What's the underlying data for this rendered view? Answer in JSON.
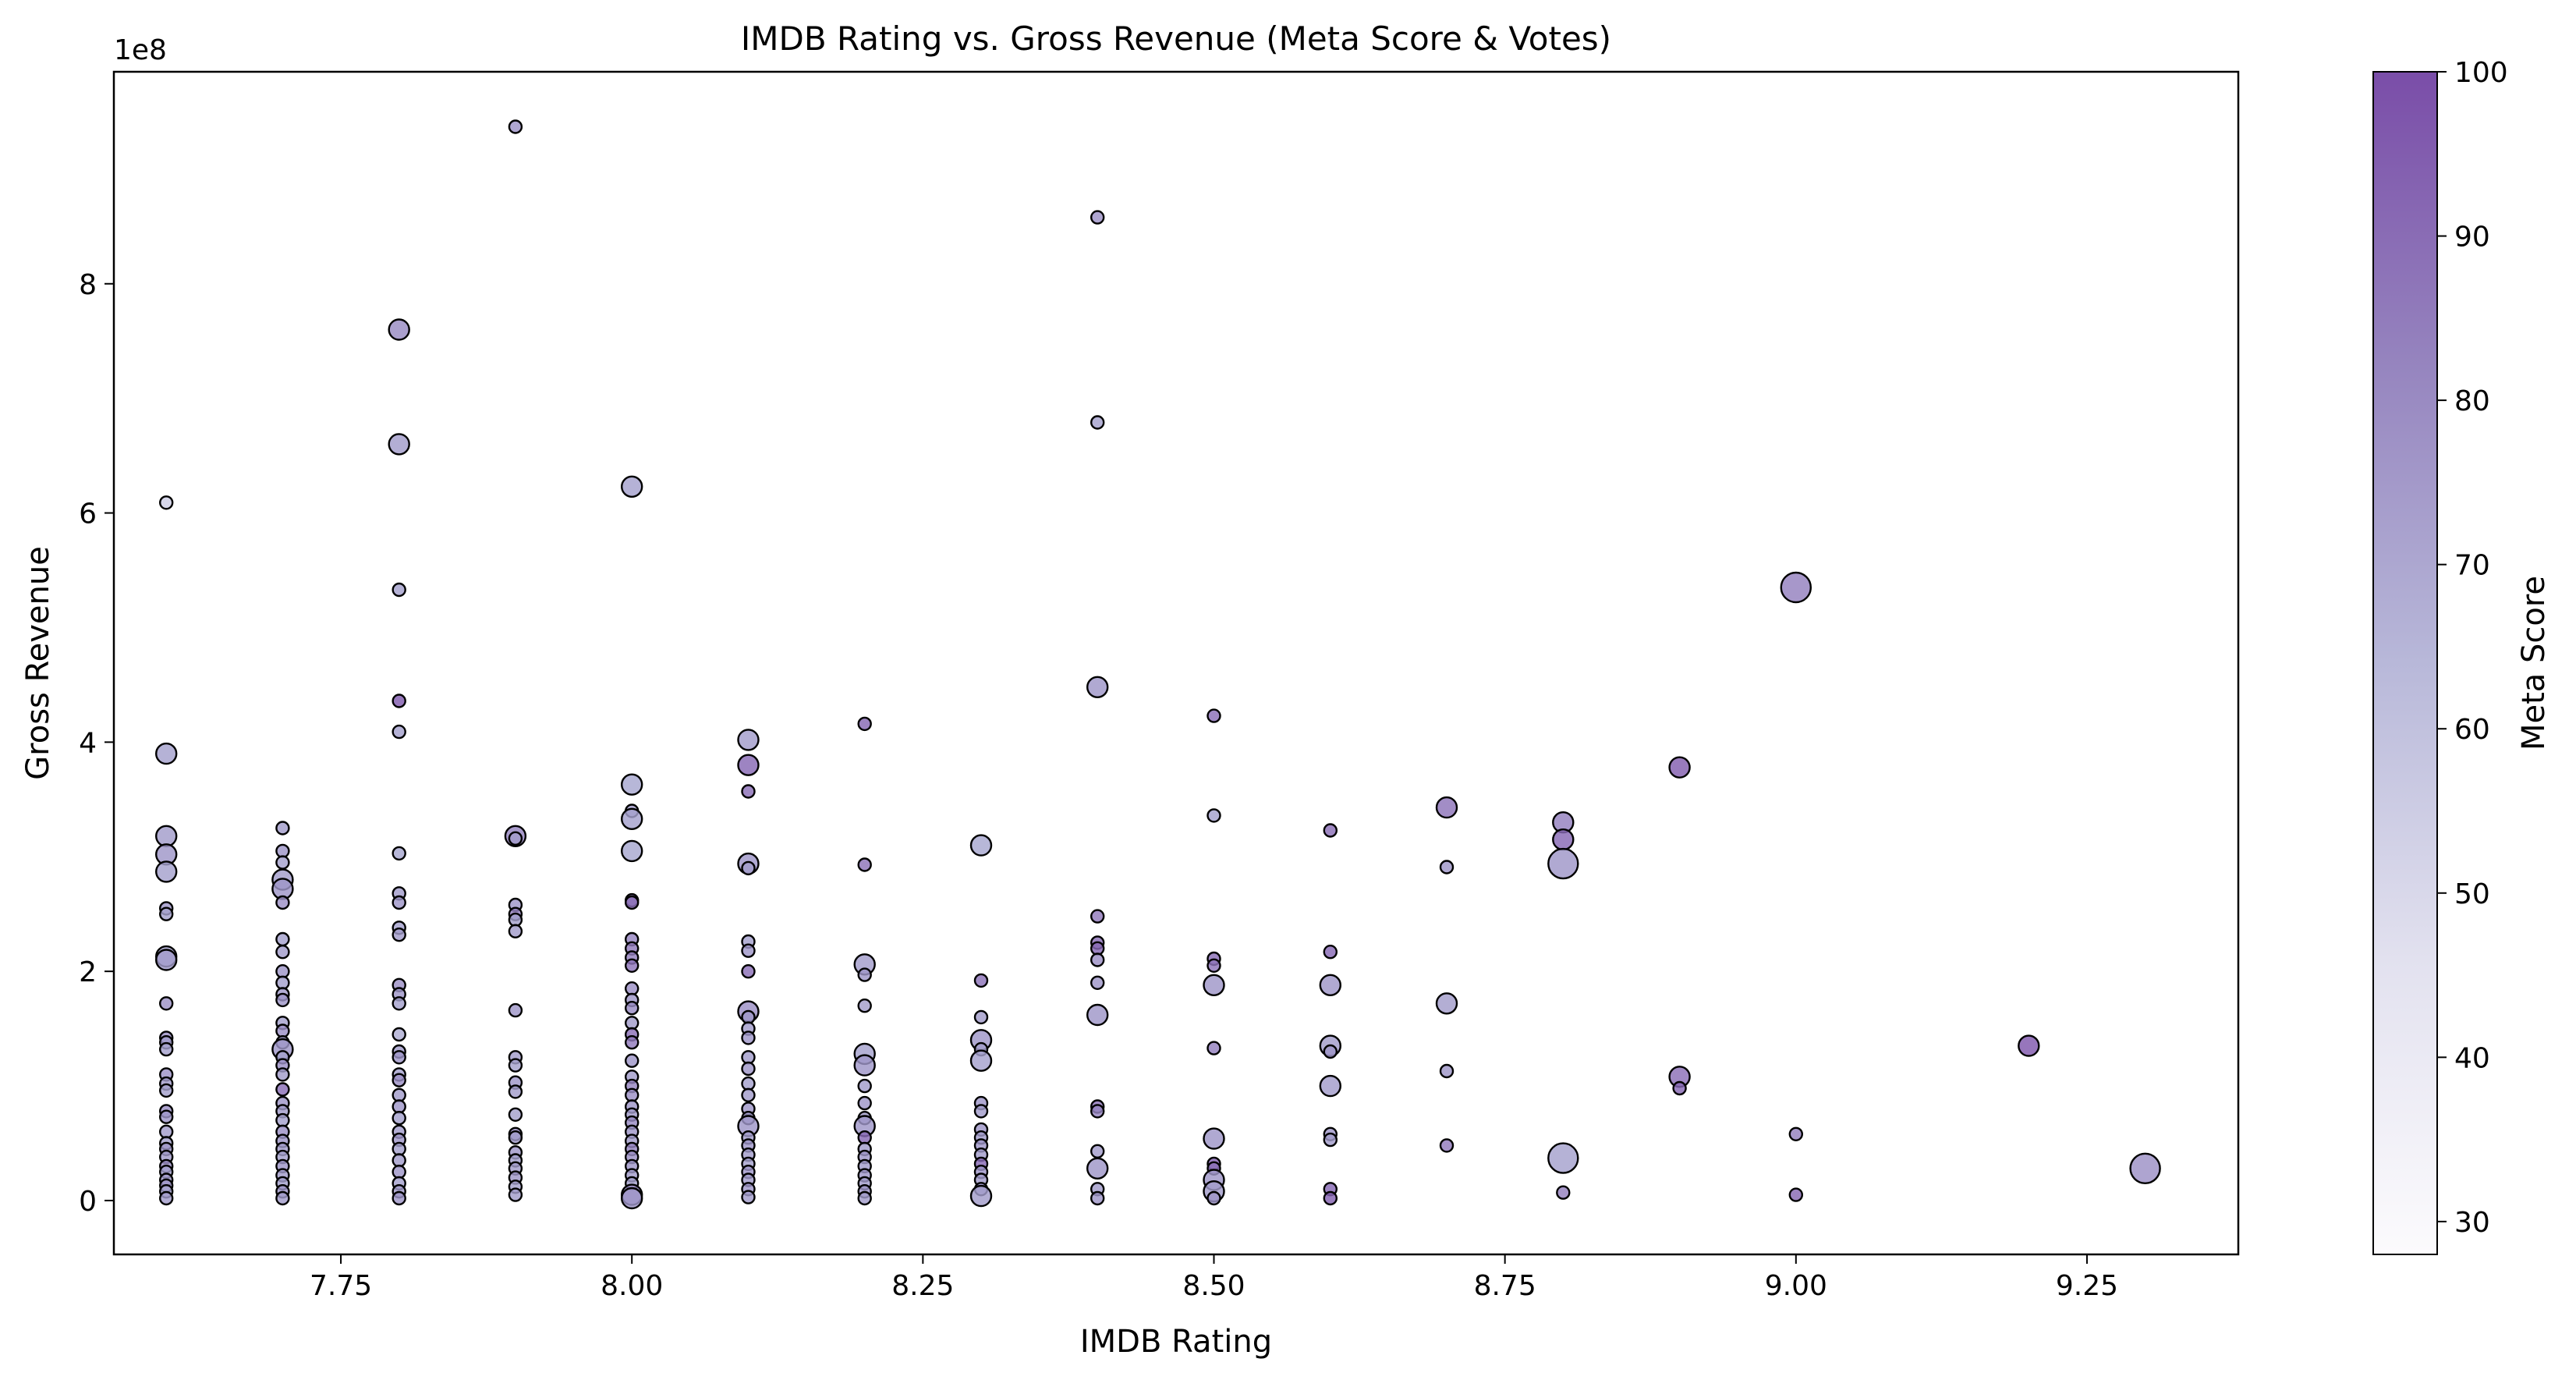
{
  "chart_data": {
    "type": "scatter",
    "title": "IMDB Rating vs. Gross Revenue (Meta Score & Votes)",
    "xlabel": "IMDB Rating",
    "ylabel": "Gross Revenue",
    "y_offset_label": "1e8",
    "xlim": [
      7.555,
      9.38
    ],
    "ylim": [
      -0.47,
      9.85
    ],
    "y_scale_note": "values in units of 1e8",
    "xticks": [
      7.75,
      8.0,
      8.25,
      8.5,
      8.75,
      9.0,
      9.25
    ],
    "xtick_labels": [
      "7.75",
      "8.00",
      "8.25",
      "8.50",
      "8.75",
      "9.00",
      "9.25"
    ],
    "yticks": [
      0,
      2,
      4,
      6,
      8
    ],
    "ytick_labels": [
      "0",
      "2",
      "4",
      "6",
      "8"
    ],
    "grid": false,
    "colorbar": {
      "label": "Meta Score",
      "range": [
        28,
        100
      ],
      "ticks": [
        30,
        40,
        50,
        60,
        70,
        80,
        90,
        100
      ],
      "tick_labels": [
        "30",
        "40",
        "50",
        "60",
        "70",
        "80",
        "90",
        "100"
      ],
      "color_low": "#fcfbfd",
      "color_mid": "#a8a8d0",
      "color_high": "#7a4da8"
    },
    "marker_edge_color": "#000000",
    "size_encoding": "votes (relative)",
    "points": [
      [
        7.6,
        6.09,
        50,
        1
      ],
      [
        7.6,
        3.9,
        70,
        2
      ],
      [
        7.6,
        3.18,
        72,
        2
      ],
      [
        7.6,
        3.02,
        74,
        2
      ],
      [
        7.6,
        2.87,
        70,
        2
      ],
      [
        7.6,
        2.55,
        74,
        1
      ],
      [
        7.6,
        2.5,
        70,
        1
      ],
      [
        7.6,
        2.13,
        70,
        2
      ],
      [
        7.6,
        2.1,
        72,
        2
      ],
      [
        7.6,
        1.72,
        75,
        1
      ],
      [
        7.6,
        1.42,
        76,
        1
      ],
      [
        7.6,
        1.38,
        72,
        1
      ],
      [
        7.6,
        1.32,
        70,
        1
      ],
      [
        7.6,
        1.1,
        75,
        1
      ],
      [
        7.6,
        1.02,
        72,
        1
      ],
      [
        7.6,
        0.96,
        70,
        1
      ],
      [
        7.6,
        0.78,
        76,
        1
      ],
      [
        7.6,
        0.73,
        74,
        1
      ],
      [
        7.6,
        0.6,
        72,
        1
      ],
      [
        7.6,
        0.5,
        70,
        1
      ],
      [
        7.6,
        0.45,
        74,
        1
      ],
      [
        7.6,
        0.38,
        72,
        1
      ],
      [
        7.6,
        0.3,
        76,
        1
      ],
      [
        7.6,
        0.25,
        70,
        1
      ],
      [
        7.6,
        0.18,
        72,
        1
      ],
      [
        7.6,
        0.13,
        74,
        1
      ],
      [
        7.6,
        0.08,
        70,
        1
      ],
      [
        7.6,
        0.02,
        72,
        1
      ],
      [
        7.7,
        3.25,
        72,
        1
      ],
      [
        7.7,
        3.05,
        74,
        1
      ],
      [
        7.7,
        2.95,
        70,
        1
      ],
      [
        7.7,
        2.8,
        72,
        2
      ],
      [
        7.7,
        2.72,
        74,
        2
      ],
      [
        7.7,
        2.6,
        76,
        1
      ],
      [
        7.7,
        2.28,
        70,
        1
      ],
      [
        7.7,
        2.17,
        72,
        1
      ],
      [
        7.7,
        2.0,
        74,
        1
      ],
      [
        7.7,
        1.9,
        70,
        1
      ],
      [
        7.7,
        1.8,
        72,
        1
      ],
      [
        7.7,
        1.75,
        74,
        1
      ],
      [
        7.7,
        1.55,
        70,
        1
      ],
      [
        7.7,
        1.48,
        76,
        1
      ],
      [
        7.7,
        1.38,
        72,
        1
      ],
      [
        7.7,
        1.32,
        74,
        2
      ],
      [
        7.7,
        1.25,
        70,
        1
      ],
      [
        7.7,
        1.18,
        76,
        1
      ],
      [
        7.7,
        1.1,
        72,
        1
      ],
      [
        7.7,
        0.97,
        88,
        1
      ],
      [
        7.7,
        0.85,
        74,
        1
      ],
      [
        7.7,
        0.78,
        72,
        1
      ],
      [
        7.7,
        0.7,
        70,
        1
      ],
      [
        7.7,
        0.6,
        76,
        1
      ],
      [
        7.7,
        0.52,
        74,
        1
      ],
      [
        7.7,
        0.45,
        72,
        1
      ],
      [
        7.7,
        0.38,
        70,
        1
      ],
      [
        7.7,
        0.3,
        74,
        1
      ],
      [
        7.7,
        0.22,
        72,
        1
      ],
      [
        7.7,
        0.15,
        70,
        1
      ],
      [
        7.7,
        0.08,
        74,
        1
      ],
      [
        7.7,
        0.02,
        72,
        1
      ],
      [
        7.8,
        7.6,
        78,
        2
      ],
      [
        7.8,
        6.6,
        72,
        2
      ],
      [
        7.8,
        5.33,
        70,
        1
      ],
      [
        7.8,
        4.36,
        95,
        1
      ],
      [
        7.8,
        4.09,
        70,
        1
      ],
      [
        7.8,
        3.03,
        68,
        1
      ],
      [
        7.8,
        2.68,
        72,
        1
      ],
      [
        7.8,
        2.6,
        74,
        1
      ],
      [
        7.8,
        2.38,
        70,
        1
      ],
      [
        7.8,
        2.32,
        72,
        1
      ],
      [
        7.8,
        1.88,
        76,
        1
      ],
      [
        7.8,
        1.8,
        74,
        1
      ],
      [
        7.8,
        1.72,
        70,
        1
      ],
      [
        7.8,
        1.45,
        65,
        1
      ],
      [
        7.8,
        1.3,
        72,
        1
      ],
      [
        7.8,
        1.25,
        74,
        1
      ],
      [
        7.8,
        1.1,
        70,
        1
      ],
      [
        7.8,
        1.05,
        76,
        1
      ],
      [
        7.8,
        0.92,
        72,
        1
      ],
      [
        7.8,
        0.82,
        74,
        1
      ],
      [
        7.8,
        0.72,
        70,
        1
      ],
      [
        7.8,
        0.6,
        72,
        1
      ],
      [
        7.8,
        0.53,
        74,
        1
      ],
      [
        7.8,
        0.45,
        70,
        1
      ],
      [
        7.8,
        0.35,
        72,
        1
      ],
      [
        7.8,
        0.25,
        74,
        1
      ],
      [
        7.8,
        0.15,
        70,
        1
      ],
      [
        7.8,
        0.08,
        72,
        1
      ],
      [
        7.8,
        0.02,
        74,
        1
      ],
      [
        7.9,
        9.37,
        75,
        1
      ],
      [
        7.9,
        3.18,
        80,
        2
      ],
      [
        7.9,
        3.16,
        72,
        1
      ],
      [
        7.9,
        2.58,
        74,
        1
      ],
      [
        7.9,
        2.5,
        82,
        1
      ],
      [
        7.9,
        2.45,
        70,
        1
      ],
      [
        7.9,
        2.35,
        72,
        1
      ],
      [
        7.9,
        1.66,
        74,
        1
      ],
      [
        7.9,
        1.25,
        72,
        1
      ],
      [
        7.9,
        1.18,
        70,
        1
      ],
      [
        7.9,
        1.03,
        74,
        1
      ],
      [
        7.9,
        0.95,
        72,
        1
      ],
      [
        7.9,
        0.75,
        70,
        1
      ],
      [
        7.9,
        0.58,
        76,
        1
      ],
      [
        7.9,
        0.55,
        72,
        1
      ],
      [
        7.9,
        0.42,
        74,
        1
      ],
      [
        7.9,
        0.35,
        70,
        1
      ],
      [
        7.9,
        0.28,
        72,
        1
      ],
      [
        7.9,
        0.2,
        74,
        1
      ],
      [
        7.9,
        0.12,
        70,
        1
      ],
      [
        7.9,
        0.05,
        72,
        1
      ],
      [
        8.0,
        6.23,
        70,
        2
      ],
      [
        8.0,
        3.63,
        68,
        2
      ],
      [
        8.0,
        3.4,
        72,
        1
      ],
      [
        8.0,
        3.33,
        70,
        2
      ],
      [
        8.0,
        3.05,
        68,
        2
      ],
      [
        8.0,
        2.62,
        85,
        1
      ],
      [
        8.0,
        2.6,
        88,
        1
      ],
      [
        8.0,
        2.28,
        80,
        1
      ],
      [
        8.0,
        2.2,
        84,
        1
      ],
      [
        8.0,
        2.12,
        82,
        1
      ],
      [
        8.0,
        2.05,
        86,
        1
      ],
      [
        8.0,
        1.85,
        76,
        1
      ],
      [
        8.0,
        1.75,
        74,
        1
      ],
      [
        8.0,
        1.68,
        78,
        1
      ],
      [
        8.0,
        1.55,
        72,
        1
      ],
      [
        8.0,
        1.45,
        88,
        1
      ],
      [
        8.0,
        1.38,
        84,
        1
      ],
      [
        8.0,
        1.22,
        74,
        1
      ],
      [
        8.0,
        1.08,
        72,
        1
      ],
      [
        8.0,
        1.0,
        80,
        1
      ],
      [
        8.0,
        0.92,
        76,
        1
      ],
      [
        8.0,
        0.82,
        74,
        1
      ],
      [
        8.0,
        0.75,
        72,
        1
      ],
      [
        8.0,
        0.68,
        78,
        1
      ],
      [
        8.0,
        0.6,
        74,
        1
      ],
      [
        8.0,
        0.52,
        72,
        1
      ],
      [
        8.0,
        0.45,
        80,
        1
      ],
      [
        8.0,
        0.38,
        76,
        1
      ],
      [
        8.0,
        0.3,
        74,
        1
      ],
      [
        8.0,
        0.22,
        72,
        1
      ],
      [
        8.0,
        0.15,
        70,
        1
      ],
      [
        8.0,
        0.05,
        78,
        2
      ],
      [
        8.0,
        0.02,
        74,
        2
      ],
      [
        8.1,
        4.02,
        72,
        2
      ],
      [
        8.1,
        3.8,
        90,
        2
      ],
      [
        8.1,
        3.57,
        88,
        1
      ],
      [
        8.1,
        2.94,
        74,
        2
      ],
      [
        8.1,
        2.9,
        72,
        1
      ],
      [
        8.1,
        2.26,
        70,
        1
      ],
      [
        8.1,
        2.18,
        74,
        1
      ],
      [
        8.1,
        2.0,
        88,
        1
      ],
      [
        8.1,
        1.65,
        76,
        2
      ],
      [
        8.1,
        1.6,
        74,
        1
      ],
      [
        8.1,
        1.5,
        72,
        1
      ],
      [
        8.1,
        1.42,
        74,
        1
      ],
      [
        8.1,
        1.25,
        72,
        1
      ],
      [
        8.1,
        1.15,
        74,
        1
      ],
      [
        8.1,
        1.02,
        70,
        1
      ],
      [
        8.1,
        0.92,
        72,
        1
      ],
      [
        8.1,
        0.8,
        74,
        1
      ],
      [
        8.1,
        0.72,
        72,
        1
      ],
      [
        8.1,
        0.65,
        74,
        2
      ],
      [
        8.1,
        0.55,
        72,
        1
      ],
      [
        8.1,
        0.48,
        74,
        1
      ],
      [
        8.1,
        0.4,
        72,
        1
      ],
      [
        8.1,
        0.32,
        70,
        1
      ],
      [
        8.1,
        0.25,
        74,
        1
      ],
      [
        8.1,
        0.18,
        72,
        1
      ],
      [
        8.1,
        0.1,
        74,
        1
      ],
      [
        8.1,
        0.03,
        72,
        1
      ],
      [
        8.2,
        4.16,
        90,
        1
      ],
      [
        8.2,
        2.93,
        86,
        1
      ],
      [
        8.2,
        2.06,
        72,
        2
      ],
      [
        8.2,
        1.97,
        74,
        1
      ],
      [
        8.2,
        1.7,
        72,
        1
      ],
      [
        8.2,
        1.28,
        70,
        2
      ],
      [
        8.2,
        1.18,
        74,
        2
      ],
      [
        8.2,
        1.0,
        72,
        1
      ],
      [
        8.2,
        0.85,
        74,
        1
      ],
      [
        8.2,
        0.72,
        72,
        1
      ],
      [
        8.2,
        0.65,
        74,
        2
      ],
      [
        8.2,
        0.55,
        90,
        1
      ],
      [
        8.2,
        0.45,
        72,
        1
      ],
      [
        8.2,
        0.38,
        74,
        1
      ],
      [
        8.2,
        0.3,
        72,
        1
      ],
      [
        8.2,
        0.22,
        74,
        1
      ],
      [
        8.2,
        0.15,
        72,
        1
      ],
      [
        8.2,
        0.08,
        74,
        1
      ],
      [
        8.2,
        0.02,
        72,
        1
      ],
      [
        8.3,
        3.1,
        68,
        2
      ],
      [
        8.3,
        1.92,
        86,
        1
      ],
      [
        8.3,
        1.6,
        72,
        1
      ],
      [
        8.3,
        1.4,
        74,
        2
      ],
      [
        8.3,
        1.32,
        72,
        1
      ],
      [
        8.3,
        1.22,
        70,
        2
      ],
      [
        8.3,
        0.85,
        74,
        1
      ],
      [
        8.3,
        0.78,
        72,
        1
      ],
      [
        8.3,
        0.62,
        74,
        1
      ],
      [
        8.3,
        0.55,
        72,
        1
      ],
      [
        8.3,
        0.48,
        74,
        1
      ],
      [
        8.3,
        0.4,
        72,
        1
      ],
      [
        8.3,
        0.32,
        90,
        1
      ],
      [
        8.3,
        0.25,
        74,
        1
      ],
      [
        8.3,
        0.18,
        72,
        1
      ],
      [
        8.3,
        0.1,
        74,
        1
      ],
      [
        8.3,
        0.04,
        72,
        2
      ],
      [
        8.4,
        8.58,
        75,
        1
      ],
      [
        8.4,
        6.79,
        70,
        1
      ],
      [
        8.4,
        4.48,
        74,
        2
      ],
      [
        8.4,
        2.48,
        84,
        1
      ],
      [
        8.4,
        2.25,
        88,
        1
      ],
      [
        8.4,
        2.2,
        90,
        1
      ],
      [
        8.4,
        2.1,
        76,
        1
      ],
      [
        8.4,
        1.9,
        74,
        1
      ],
      [
        8.4,
        1.62,
        74,
        2
      ],
      [
        8.4,
        0.82,
        86,
        1
      ],
      [
        8.4,
        0.78,
        80,
        1
      ],
      [
        8.4,
        0.43,
        72,
        1
      ],
      [
        8.4,
        0.28,
        74,
        2
      ],
      [
        8.4,
        0.1,
        72,
        1
      ],
      [
        8.4,
        0.02,
        74,
        1
      ],
      [
        8.5,
        4.23,
        88,
        1
      ],
      [
        8.5,
        3.36,
        70,
        1
      ],
      [
        8.5,
        2.11,
        88,
        1
      ],
      [
        8.5,
        2.05,
        86,
        1
      ],
      [
        8.5,
        1.88,
        74,
        2
      ],
      [
        8.5,
        1.33,
        82,
        1
      ],
      [
        8.5,
        0.54,
        74,
        2
      ],
      [
        8.5,
        0.32,
        92,
        1
      ],
      [
        8.5,
        0.28,
        88,
        1
      ],
      [
        8.5,
        0.18,
        74,
        2
      ],
      [
        8.5,
        0.08,
        72,
        2
      ],
      [
        8.5,
        0.02,
        74,
        1
      ],
      [
        8.6,
        3.23,
        88,
        1
      ],
      [
        8.6,
        2.17,
        90,
        1
      ],
      [
        8.6,
        1.88,
        74,
        2
      ],
      [
        8.6,
        1.35,
        72,
        2
      ],
      [
        8.6,
        1.3,
        74,
        1
      ],
      [
        8.6,
        1.0,
        72,
        2
      ],
      [
        8.6,
        0.58,
        74,
        1
      ],
      [
        8.6,
        0.53,
        72,
        1
      ],
      [
        8.6,
        0.1,
        90,
        1
      ],
      [
        8.6,
        0.02,
        92,
        1
      ],
      [
        8.7,
        3.43,
        86,
        2
      ],
      [
        8.7,
        2.91,
        74,
        1
      ],
      [
        8.7,
        1.72,
        72,
        2
      ],
      [
        8.7,
        1.13,
        74,
        1
      ],
      [
        8.7,
        0.48,
        84,
        1
      ],
      [
        8.8,
        3.3,
        82,
        2
      ],
      [
        8.8,
        3.15,
        90,
        2
      ],
      [
        8.8,
        2.94,
        74,
        3
      ],
      [
        8.8,
        0.37,
        70,
        3
      ],
      [
        8.8,
        0.07,
        82,
        1
      ],
      [
        8.9,
        3.78,
        94,
        2
      ],
      [
        8.9,
        1.08,
        88,
        2
      ],
      [
        8.9,
        0.98,
        90,
        1
      ],
      [
        9.0,
        5.35,
        82,
        3
      ],
      [
        9.0,
        0.58,
        82,
        1
      ],
      [
        9.0,
        0.05,
        90,
        1
      ],
      [
        9.2,
        1.35,
        96,
        2
      ],
      [
        9.3,
        0.28,
        76,
        3
      ]
    ]
  }
}
